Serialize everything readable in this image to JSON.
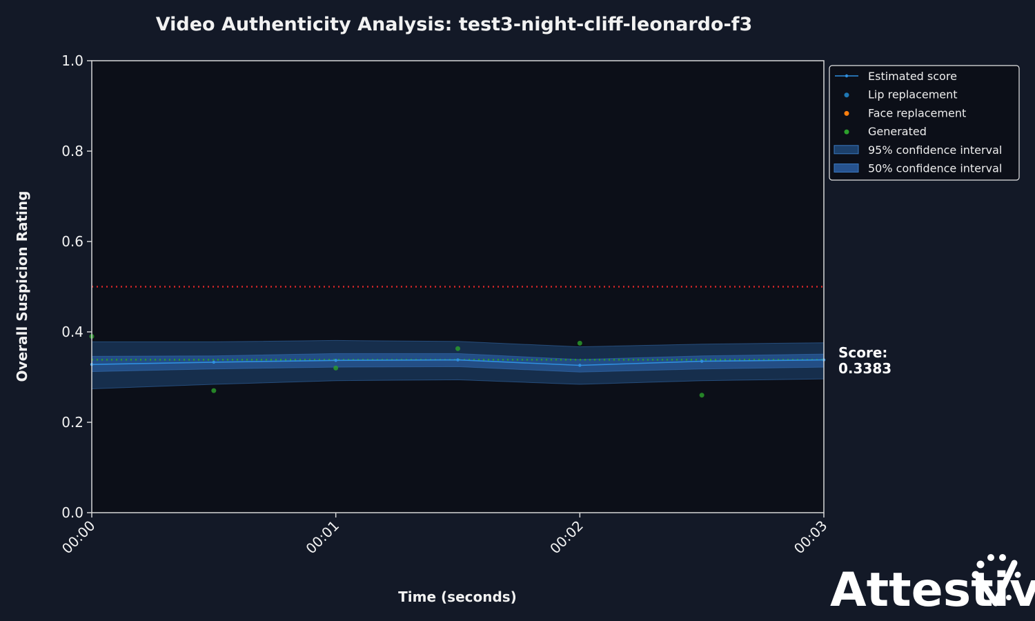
{
  "chart_data": {
    "type": "line",
    "title": "Video Authenticity Analysis: test3-night-cliff-leonardo-f3",
    "xlabel": "Time (seconds)",
    "ylabel": "Overall Suspicion Rating",
    "xlim": [
      0,
      3
    ],
    "ylim": [
      0,
      1.0
    ],
    "x_ticks": [
      {
        "value": 0,
        "label": "00:00"
      },
      {
        "value": 1,
        "label": "00:01"
      },
      {
        "value": 2,
        "label": "00:02"
      },
      {
        "value": 3,
        "label": "00:03"
      }
    ],
    "y_ticks": [
      {
        "value": 0.0,
        "label": "0.0"
      },
      {
        "value": 0.2,
        "label": "0.2"
      },
      {
        "value": 0.4,
        "label": "0.4"
      },
      {
        "value": 0.6,
        "label": "0.6"
      },
      {
        "value": 0.8,
        "label": "0.8"
      },
      {
        "value": 1.0,
        "label": "1.0"
      }
    ],
    "threshold": {
      "value": 0.5,
      "color": "#d62728"
    },
    "mean_line": {
      "value": 0.3383,
      "color": "#2ca02c"
    },
    "series": [
      {
        "name": "Estimated score",
        "kind": "line",
        "color": "#2f8fe0",
        "x": [
          0,
          0.5,
          1.0,
          1.5,
          2.0,
          2.5,
          3.0
        ],
        "y": [
          0.328,
          0.333,
          0.337,
          0.338,
          0.326,
          0.335,
          0.338
        ]
      },
      {
        "name": "Lip replacement",
        "kind": "scatter",
        "color": "#1f77b4",
        "x": [],
        "y": []
      },
      {
        "name": "Face replacement",
        "kind": "scatter",
        "color": "#ff7f0e",
        "x": [],
        "y": []
      },
      {
        "name": "Generated",
        "kind": "scatter",
        "color": "#2ca02c",
        "x": [
          0,
          0.5,
          1.0,
          1.5,
          2.0,
          2.5
        ],
        "y": [
          0.39,
          0.27,
          0.32,
          0.363,
          0.375,
          0.26
        ]
      }
    ],
    "bands": [
      {
        "name": "95% confidence interval",
        "color": "#2a6ab0",
        "opacity": 0.35,
        "x": [
          0,
          0.5,
          1.0,
          1.5,
          2.0,
          2.5,
          3.0
        ],
        "lower": [
          0.274,
          0.284,
          0.292,
          0.294,
          0.284,
          0.292,
          0.296
        ],
        "upper": [
          0.378,
          0.378,
          0.381,
          0.379,
          0.367,
          0.373,
          0.376
        ]
      },
      {
        "name": "50% confidence interval",
        "color": "#2f6ab5",
        "opacity": 0.55,
        "x": [
          0,
          0.5,
          1.0,
          1.5,
          2.0,
          2.5,
          3.0
        ],
        "lower": [
          0.312,
          0.318,
          0.322,
          0.323,
          0.311,
          0.318,
          0.322
        ],
        "upper": [
          0.346,
          0.347,
          0.352,
          0.352,
          0.339,
          0.347,
          0.351
        ]
      }
    ],
    "legend": {
      "position": "upper-right-outside",
      "entries": [
        "Estimated score",
        "Lip replacement",
        "Face replacement",
        "Generated",
        "95% confidence interval",
        "50% confidence interval"
      ]
    },
    "grid": false
  },
  "score": {
    "label": "Score:",
    "value": "0.3383"
  },
  "brand": {
    "name": "Attestiv"
  },
  "colors": {
    "page_background": "#131927",
    "plot_background": "#0c0f18",
    "axis": "#d8d8d8"
  }
}
